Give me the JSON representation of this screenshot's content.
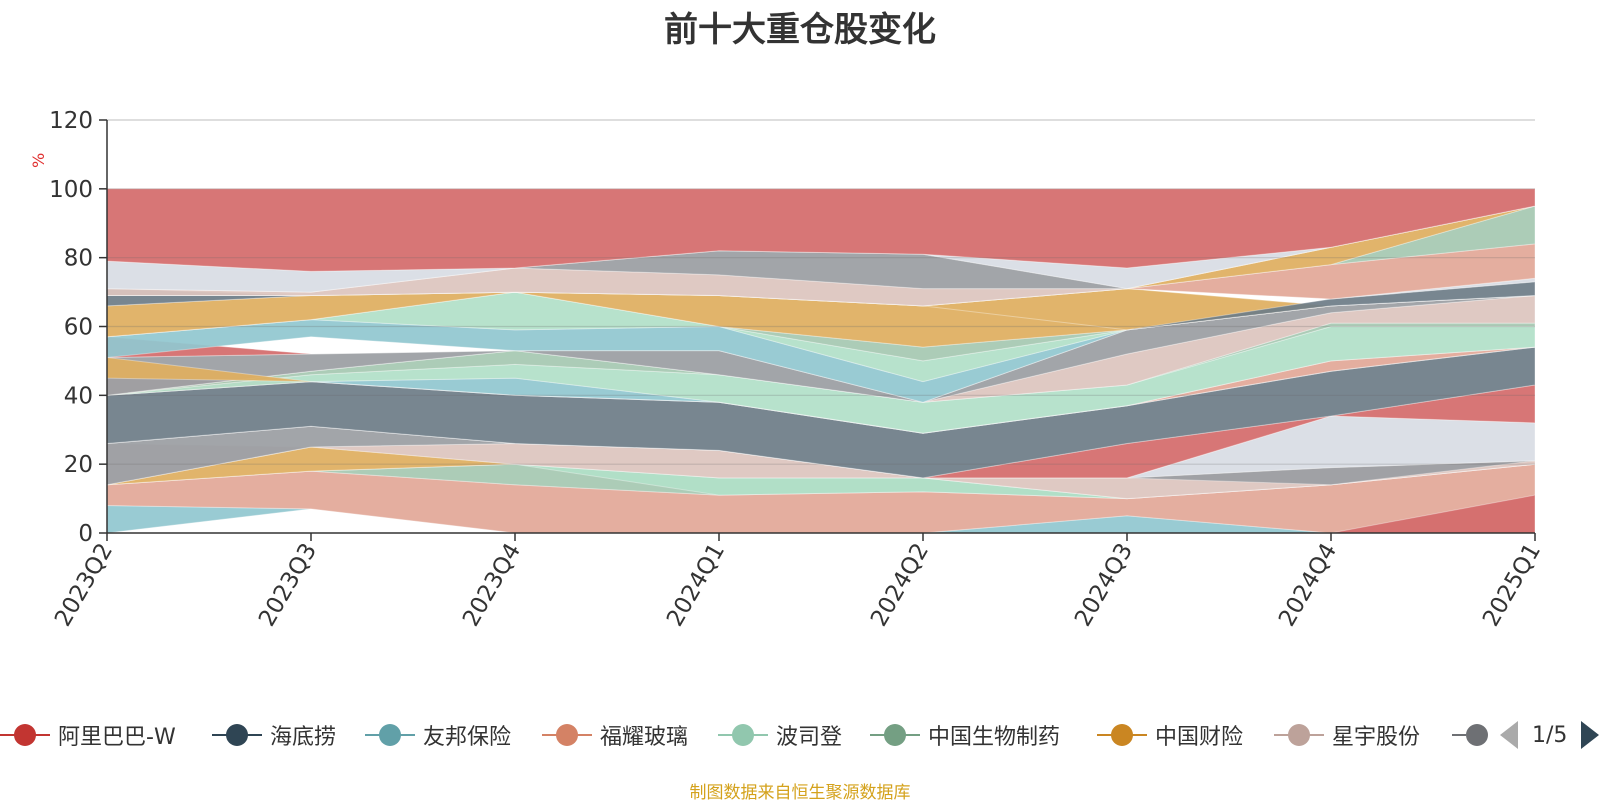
{
  "chart_data": {
    "type": "area",
    "title": "前十大重仓股变化",
    "ylabel": "%",
    "ylim": [
      0,
      120
    ],
    "yticks": [
      0,
      20,
      40,
      60,
      80,
      100,
      120
    ],
    "grid": true,
    "categories": [
      "2023Q2",
      "2023Q3",
      "2023Q4",
      "2024Q1",
      "2024Q2",
      "2024Q3",
      "2024Q4",
      "2025Q1"
    ],
    "bands": [
      {
        "color": "#7b8f99",
        "lower": [
          0,
          7,
          0,
          0,
          0,
          0,
          0,
          0
        ],
        "upper": [
          0,
          7,
          0,
          0,
          0,
          0,
          0,
          0
        ]
      },
      {
        "color": "#91c7d0",
        "lower": [
          0,
          7,
          0,
          0,
          0,
          0,
          0,
          0
        ],
        "upper": [
          8,
          7,
          0,
          0,
          0,
          5,
          0,
          0
        ]
      },
      {
        "color": "#e2a898",
        "lower": [
          8,
          7,
          0,
          0,
          0,
          5,
          0,
          0
        ],
        "upper": [
          14,
          18,
          14,
          11,
          12,
          10,
          14,
          20
        ]
      },
      {
        "color": "#d46c6c",
        "lower": [
          0,
          0,
          0,
          0,
          0,
          0,
          0,
          0
        ],
        "upper": [
          0,
          0,
          0,
          0,
          0,
          0,
          0,
          11
        ]
      },
      {
        "color": "#a6c8b2",
        "lower": [
          14,
          18,
          14,
          11,
          12,
          10,
          14,
          20
        ],
        "upper": [
          14,
          18,
          20,
          16,
          16,
          10,
          14,
          20
        ]
      },
      {
        "color": "#b2e0c8",
        "lower": [
          14,
          18,
          20,
          11,
          12,
          10,
          14,
          20
        ],
        "upper": [
          14,
          18,
          20,
          16,
          16,
          10,
          14,
          20
        ]
      },
      {
        "color": "#dfae60",
        "lower": [
          14,
          18,
          20,
          16,
          16,
          10,
          14,
          20
        ],
        "upper": [
          14,
          25,
          20,
          16,
          16,
          10,
          14,
          20
        ]
      },
      {
        "color": "#ddc5be",
        "lower": [
          14,
          25,
          20,
          16,
          16,
          10,
          14,
          20
        ],
        "upper": [
          26,
          25,
          26,
          24,
          16,
          16,
          19,
          21
        ]
      },
      {
        "color": "#9b9ea3",
        "lower": [
          14,
          25,
          26,
          24,
          16,
          16,
          14,
          21
        ],
        "upper": [
          26,
          31,
          26,
          24,
          16,
          16,
          19,
          21
        ]
      },
      {
        "color": "#d8dde4",
        "lower": [
          26,
          31,
          26,
          24,
          16,
          16,
          19,
          21
        ],
        "upper": [
          26,
          31,
          26,
          24,
          16,
          16,
          34,
          32
        ]
      },
      {
        "color": "#d46c6c",
        "lower": [
          26,
          31,
          26,
          24,
          16,
          16,
          34,
          32
        ],
        "upper": [
          26,
          31,
          26,
          24,
          16,
          26,
          34,
          43
        ]
      },
      {
        "color": "#6e7d88",
        "lower": [
          26,
          31,
          26,
          24,
          16,
          26,
          34,
          43
        ],
        "upper": [
          40,
          44,
          40,
          38,
          29,
          37,
          47,
          54
        ]
      },
      {
        "color": "#e2a898",
        "lower": [
          40,
          44,
          40,
          38,
          29,
          37,
          47,
          54
        ],
        "upper": [
          45,
          44,
          40,
          38,
          29,
          37,
          50,
          54
        ]
      },
      {
        "color": "#91c7d0",
        "lower": [
          40,
          44,
          40,
          38,
          29,
          37,
          50,
          54
        ],
        "upper": [
          40,
          44,
          45,
          38,
          29,
          37,
          50,
          54
        ]
      },
      {
        "color": "#b2e0c8",
        "lower": [
          40,
          44,
          45,
          38,
          29,
          37,
          50,
          54
        ],
        "upper": [
          40,
          46,
          49,
          46,
          38,
          43,
          60,
          60
        ]
      },
      {
        "color": "#a6c8b2",
        "lower": [
          40,
          46,
          49,
          46,
          38,
          43,
          60,
          60
        ],
        "upper": [
          40,
          47,
          53,
          46,
          38,
          43,
          61,
          61
        ]
      },
      {
        "color": "#ddc5be",
        "lower": [
          40,
          47,
          53,
          46,
          38,
          43,
          61,
          61
        ],
        "upper": [
          40,
          47,
          53,
          46,
          38,
          52,
          64,
          69
        ]
      },
      {
        "color": "#9b9ea3",
        "lower": [
          40,
          47,
          53,
          46,
          38,
          52,
          64,
          69
        ],
        "upper": [
          51,
          52,
          53,
          53,
          38,
          59,
          66,
          69
        ]
      },
      {
        "color": "#dfae60",
        "lower": [
          45,
          44,
          40,
          38,
          29,
          37,
          47,
          54
        ],
        "upper": [
          51,
          44,
          40,
          38,
          29,
          37,
          47,
          54
        ]
      },
      {
        "color": "#d46c6c",
        "lower": [
          51,
          52,
          53,
          53,
          38,
          59,
          66,
          69
        ],
        "upper": [
          57,
          52,
          53,
          53,
          38,
          59,
          66,
          69
        ]
      },
      {
        "color": "#91c7d0",
        "lower": [
          51,
          57,
          53,
          53,
          38,
          59,
          66,
          69
        ],
        "upper": [
          57,
          62,
          59,
          60,
          44,
          59,
          66,
          69
        ]
      },
      {
        "color": "#b2e0c8",
        "lower": [
          57,
          62,
          59,
          60,
          44,
          59,
          66,
          69
        ],
        "upper": [
          57,
          62,
          70,
          60,
          50,
          59,
          66,
          69
        ]
      },
      {
        "color": "#a6c8b2",
        "lower": [
          57,
          62,
          70,
          60,
          50,
          59,
          66,
          69
        ],
        "upper": [
          57,
          62,
          70,
          60,
          54,
          59,
          66,
          69
        ]
      },
      {
        "color": "#dfae60",
        "lower": [
          57,
          62,
          70,
          60,
          54,
          59,
          66,
          69
        ],
        "upper": [
          66,
          69,
          70,
          69,
          66,
          71,
          66,
          69
        ]
      },
      {
        "color": "#6e7d88",
        "lower": [
          66,
          69,
          70,
          69,
          66,
          59,
          66,
          69
        ],
        "upper": [
          71,
          69,
          70,
          69,
          66,
          59,
          68,
          73
        ]
      },
      {
        "color": "#d8dde4",
        "lower": [
          69,
          69,
          70,
          69,
          66,
          71,
          68,
          73
        ],
        "upper": [
          69,
          69,
          70,
          69,
          66,
          71,
          68,
          74
        ]
      },
      {
        "color": "#e2a898",
        "lower": [
          69,
          69,
          70,
          69,
          66,
          71,
          68,
          74
        ],
        "upper": [
          69,
          69,
          70,
          69,
          66,
          71,
          78,
          84
        ]
      },
      {
        "color": "#a6c8b2",
        "lower": [
          69,
          69,
          70,
          69,
          66,
          71,
          78,
          84
        ],
        "upper": [
          69,
          69,
          70,
          69,
          66,
          71,
          78,
          95
        ]
      },
      {
        "color": "#dfae60",
        "lower": [
          69,
          69,
          70,
          69,
          66,
          71,
          78,
          95
        ],
        "upper": [
          69,
          69,
          70,
          69,
          66,
          71,
          83,
          95
        ]
      },
      {
        "color": "#ddc5be",
        "lower": [
          69,
          69,
          70,
          69,
          66,
          71,
          83,
          95
        ],
        "upper": [
          71,
          70,
          77,
          75,
          71,
          71,
          83,
          95
        ]
      },
      {
        "color": "#9b9ea3",
        "lower": [
          71,
          70,
          77,
          75,
          71,
          71,
          83,
          95
        ],
        "upper": [
          71,
          70,
          77,
          82,
          81,
          71,
          83,
          95
        ]
      },
      {
        "color": "#d8dde4",
        "lower": [
          71,
          70,
          77,
          82,
          81,
          71,
          83,
          95
        ],
        "upper": [
          79,
          76,
          77,
          82,
          81,
          77,
          83,
          95
        ]
      },
      {
        "color": "#d46c6c",
        "lower": [
          79,
          76,
          77,
          82,
          81,
          77,
          83,
          95
        ],
        "upper": [
          100,
          100,
          100,
          100,
          100,
          100,
          100,
          100
        ]
      }
    ]
  },
  "legend": {
    "items": [
      {
        "label": "阿里巴巴-W",
        "color": "#c23531"
      },
      {
        "label": "海底捞",
        "color": "#2f4554"
      },
      {
        "label": "友邦保险",
        "color": "#61a0a8"
      },
      {
        "label": "福耀玻璃",
        "color": "#d48265"
      },
      {
        "label": "波司登",
        "color": "#91c7ae"
      },
      {
        "label": "中国生物制药",
        "color": "#749f83"
      },
      {
        "label": "中国财险",
        "color": "#ca8622"
      },
      {
        "label": "星宇股份",
        "color": "#bda29a"
      },
      {
        "label": "",
        "color": "#6e7074"
      }
    ],
    "page_text": "1/5"
  },
  "footer": {
    "source_note": "制图数据来自恒生聚源数据库"
  }
}
